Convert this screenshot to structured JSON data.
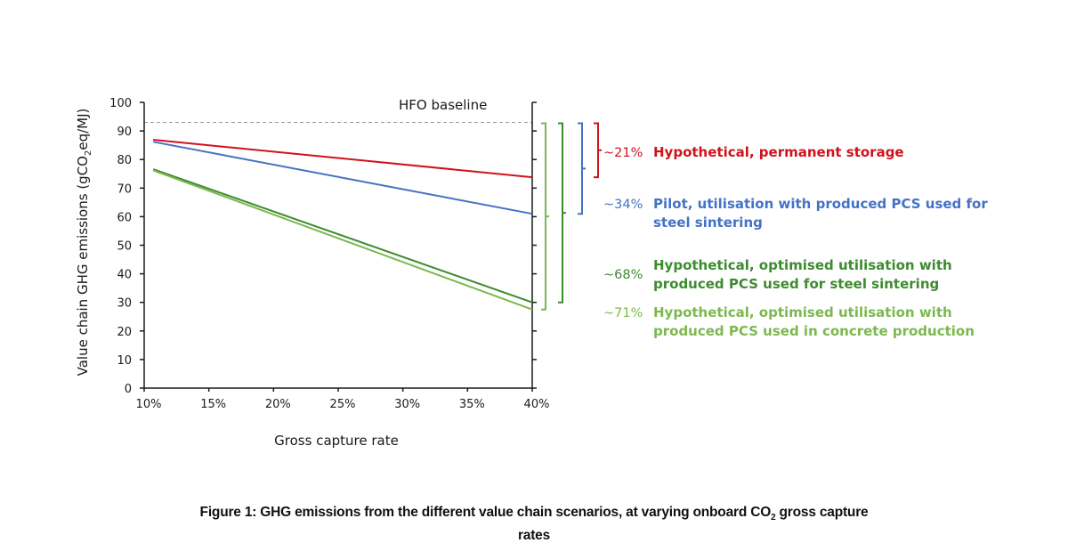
{
  "chart_data": {
    "type": "line",
    "title": "",
    "xlabel": "Gross capture rate",
    "ylabel_parts": [
      "Value chain GHG emissions (gCO",
      "2",
      "eq/MJ)"
    ],
    "ylabel": "Value chain GHG emissions (gCO2eq/MJ)",
    "xlim": [
      10,
      40
    ],
    "ylim": [
      0,
      100
    ],
    "x_ticks": [
      10,
      15,
      20,
      25,
      30,
      35,
      40
    ],
    "x_tick_labels": [
      "10%",
      "15%",
      "20%",
      "25%",
      "30%",
      "35%",
      "40%"
    ],
    "y_ticks": [
      0,
      10,
      20,
      30,
      40,
      50,
      60,
      70,
      80,
      90,
      100
    ],
    "y_tick_labels": [
      "0",
      "10",
      "20",
      "30",
      "40",
      "50",
      "60",
      "70",
      "80",
      "90",
      "100"
    ],
    "grid": false,
    "baseline": {
      "label": "HFO baseline",
      "value": 93,
      "style": "dashed",
      "color": "#9a9a9a"
    },
    "series": [
      {
        "name": "Hypothetical, permanent storage",
        "reduction": "~21%",
        "color": "#d0121b",
        "x": [
          10.7,
          40
        ],
        "y": [
          86.9,
          73.8
        ],
        "legend_lines": [
          "Hypothetical, permanent storage"
        ]
      },
      {
        "name": "Pilot, utilisation with produced PCS used for steel sintering",
        "reduction": "~34%",
        "color": "#4472c4",
        "x": [
          10.7,
          40
        ],
        "y": [
          86.2,
          61
        ],
        "legend_lines": [
          "Pilot, utilisation with produced PCS used for",
          "steel sintering"
        ]
      },
      {
        "name": "Hypothetical, optimised utilisation with produced PCS used for steel sintering",
        "reduction": "~68%",
        "color": "#3d8b2f",
        "x": [
          10.7,
          40
        ],
        "y": [
          76.6,
          30
        ],
        "legend_lines": [
          "Hypothetical, optimised utilisation with",
          "produced PCS used for steel sintering"
        ]
      },
      {
        "name": "Hypothetical, optimised utilisation with produced PCS used in concrete production",
        "reduction": "~71%",
        "color": "#7cb84f",
        "x": [
          10.7,
          40
        ],
        "y": [
          76.2,
          27.5
        ],
        "legend_lines": [
          "Hypothetical, optimised utilisation with",
          "produced PCS used in concrete production"
        ]
      }
    ],
    "legend_placement": "right"
  },
  "caption": {
    "prefix": "Figure 1: GHG emissions from the different value chain scenarios, at varying onboard CO",
    "sub": "2",
    "suffix": " gross capture",
    "line2": "rates"
  }
}
